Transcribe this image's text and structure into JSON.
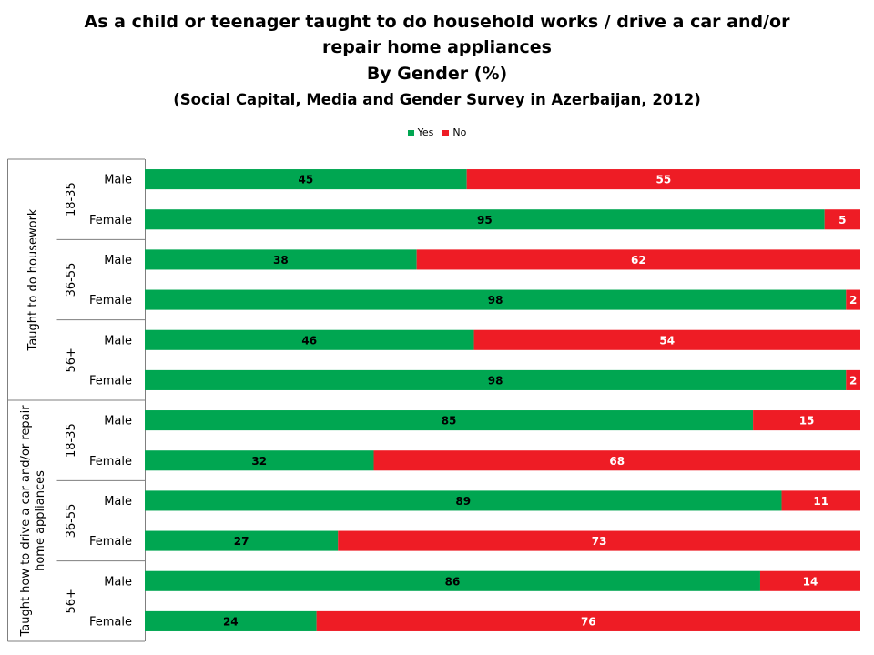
{
  "chart_data": {
    "type": "bar",
    "orientation": "horizontal",
    "stacked": true,
    "title": "As a child or teenager taught to do household works / drive a car and/or",
    "title_line2": "repair home appliances",
    "subtitle": "By Gender (%)",
    "source_note": "(Social Capital, Media and Gender Survey in Azerbaijan, 2012)",
    "legend_position": "top",
    "xlim": [
      0,
      100
    ],
    "grid": false,
    "colors": {
      "Yes": "#00a651",
      "No": "#ee1c25"
    },
    "groups": [
      {
        "label": "Taught to do housework",
        "subgroups": [
          {
            "label": "18-35",
            "rows": [
              {
                "label": "Male",
                "yes": 45,
                "no": 55
              },
              {
                "label": "Female",
                "yes": 95,
                "no": 5
              }
            ]
          },
          {
            "label": "36-55",
            "rows": [
              {
                "label": "Male",
                "yes": 38,
                "no": 62
              },
              {
                "label": "Female",
                "yes": 98,
                "no": 2
              }
            ]
          },
          {
            "label": "56+",
            "rows": [
              {
                "label": "Male",
                "yes": 46,
                "no": 54
              },
              {
                "label": "Female",
                "yes": 98,
                "no": 2
              }
            ]
          }
        ]
      },
      {
        "label": "Taught how to drive a car and/or repair home appliances",
        "label_lines": [
          "Taught how to drive a car and/or repair",
          "home appliances"
        ],
        "subgroups": [
          {
            "label": "18-35",
            "rows": [
              {
                "label": "Male",
                "yes": 85,
                "no": 15
              },
              {
                "label": "Female",
                "yes": 32,
                "no": 68
              }
            ]
          },
          {
            "label": "36-55",
            "rows": [
              {
                "label": "Male",
                "yes": 89,
                "no": 11
              },
              {
                "label": "Female",
                "yes": 27,
                "no": 73
              }
            ]
          },
          {
            "label": "56+",
            "rows": [
              {
                "label": "Male",
                "yes": 86,
                "no": 14
              },
              {
                "label": "Female",
                "yes": 24,
                "no": 76
              }
            ]
          }
        ]
      }
    ],
    "series": [
      {
        "name": "Yes",
        "values": [
          45,
          95,
          38,
          98,
          46,
          98,
          85,
          32,
          89,
          27,
          86,
          24
        ]
      },
      {
        "name": "No",
        "values": [
          55,
          5,
          62,
          2,
          54,
          2,
          15,
          68,
          11,
          73,
          14,
          76
        ]
      }
    ]
  }
}
